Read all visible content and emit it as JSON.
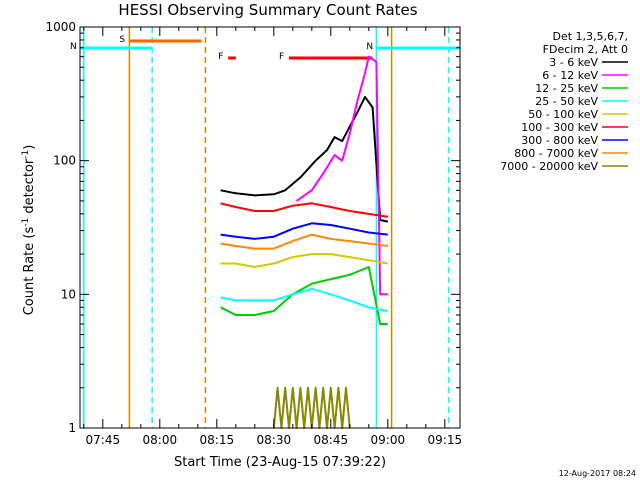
{
  "chart_data": {
    "type": "line",
    "title": "HESSI Observing Summary Count Rates",
    "xlabel": "Start Time (23-Aug-15 07:39:22)",
    "ylabel_main": "Count Rate (s",
    "ylabel_sup1": "-1",
    "ylabel_mid": " detector",
    "ylabel_sup2": "-1",
    "ylabel_end": ")",
    "yscale": "log",
    "xlim": [
      "07:39",
      "09:19"
    ],
    "ylim": [
      1,
      1000
    ],
    "x_ticks": [
      "07:45",
      "08:00",
      "08:15",
      "08:30",
      "08:45",
      "09:00",
      "09:15"
    ],
    "y_ticks": [
      "1",
      "10",
      "100",
      "1000"
    ],
    "legend_position": "right",
    "legend_header": [
      "Det 1,3,5,6,7,",
      "FDecim 2, Att 0"
    ],
    "footer_date": "12-Aug-2017 08:24",
    "series": [
      {
        "name": "3 - 6 keV",
        "color": "#000000",
        "points": [
          [
            "08:16",
            60
          ],
          [
            "08:20",
            57
          ],
          [
            "08:25",
            55
          ],
          [
            "08:30",
            56
          ],
          [
            "08:33",
            60
          ],
          [
            "08:37",
            75
          ],
          [
            "08:41",
            100
          ],
          [
            "08:44",
            120
          ],
          [
            "08:46",
            150
          ],
          [
            "08:48",
            140
          ],
          [
            "08:50",
            180
          ],
          [
            "08:52",
            230
          ],
          [
            "08:54",
            300
          ],
          [
            "08:56",
            250
          ],
          [
            "08:58",
            36
          ],
          [
            "09:00",
            35
          ]
        ]
      },
      {
        "name": "6 - 12 keV",
        "color": "#ff00ff",
        "points": [
          [
            "08:36",
            50
          ],
          [
            "08:40",
            60
          ],
          [
            "08:43",
            80
          ],
          [
            "08:46",
            110
          ],
          [
            "08:48",
            100
          ],
          [
            "08:50",
            160
          ],
          [
            "08:52",
            280
          ],
          [
            "08:54",
            450
          ],
          [
            "08:55",
            600
          ],
          [
            "08:57",
            550
          ],
          [
            "08:58",
            10
          ],
          [
            "09:00",
            10
          ]
        ]
      },
      {
        "name": "12 - 25 keV",
        "color": "#00cc00",
        "points": [
          [
            "08:16",
            8
          ],
          [
            "08:20",
            7
          ],
          [
            "08:25",
            7
          ],
          [
            "08:30",
            7.5
          ],
          [
            "08:35",
            10
          ],
          [
            "08:40",
            12
          ],
          [
            "08:45",
            13
          ],
          [
            "08:50",
            14
          ],
          [
            "08:55",
            16
          ],
          [
            "08:58",
            6
          ],
          [
            "09:00",
            6
          ]
        ]
      },
      {
        "name": "25 - 50 keV",
        "color": "#00ffff",
        "points": [
          [
            "08:16",
            9.5
          ],
          [
            "08:20",
            9
          ],
          [
            "08:25",
            9
          ],
          [
            "08:30",
            9
          ],
          [
            "08:35",
            10
          ],
          [
            "08:40",
            11
          ],
          [
            "08:45",
            10
          ],
          [
            "08:50",
            9
          ],
          [
            "08:55",
            8
          ],
          [
            "09:00",
            7.5
          ]
        ]
      },
      {
        "name": "50 - 100 keV",
        "color": "#cccc00",
        "points": [
          [
            "08:16",
            17
          ],
          [
            "08:20",
            17
          ],
          [
            "08:25",
            16
          ],
          [
            "08:30",
            17
          ],
          [
            "08:35",
            19
          ],
          [
            "08:40",
            20
          ],
          [
            "08:45",
            20
          ],
          [
            "08:50",
            19
          ],
          [
            "08:55",
            18
          ],
          [
            "09:00",
            17
          ]
        ]
      },
      {
        "name": "100 - 300 keV",
        "color": "#ff0000",
        "points": [
          [
            "08:16",
            48
          ],
          [
            "08:20",
            45
          ],
          [
            "08:25",
            42
          ],
          [
            "08:30",
            42
          ],
          [
            "08:35",
            46
          ],
          [
            "08:40",
            48
          ],
          [
            "08:45",
            45
          ],
          [
            "08:50",
            42
          ],
          [
            "08:55",
            40
          ],
          [
            "09:00",
            38
          ]
        ]
      },
      {
        "name": "300 - 800 keV",
        "color": "#0000ff",
        "points": [
          [
            "08:16",
            28
          ],
          [
            "08:20",
            27
          ],
          [
            "08:25",
            26
          ],
          [
            "08:30",
            27
          ],
          [
            "08:35",
            31
          ],
          [
            "08:40",
            34
          ],
          [
            "08:45",
            33
          ],
          [
            "08:50",
            31
          ],
          [
            "08:55",
            29
          ],
          [
            "09:00",
            28
          ]
        ]
      },
      {
        "name": "800 - 7000 keV",
        "color": "#ff8800",
        "points": [
          [
            "08:16",
            24
          ],
          [
            "08:20",
            23
          ],
          [
            "08:25",
            22
          ],
          [
            "08:30",
            22
          ],
          [
            "08:35",
            25
          ],
          [
            "08:40",
            28
          ],
          [
            "08:45",
            26
          ],
          [
            "08:50",
            25
          ],
          [
            "08:55",
            24
          ],
          [
            "09:00",
            23
          ]
        ]
      },
      {
        "name": "7000 - 20000 keV",
        "color": "#888800",
        "points": [
          [
            "08:30",
            1
          ],
          [
            "08:31",
            2
          ],
          [
            "08:32",
            1
          ],
          [
            "08:33",
            2
          ],
          [
            "08:34",
            1
          ],
          [
            "08:35",
            2
          ],
          [
            "08:36",
            1
          ],
          [
            "08:37",
            2
          ],
          [
            "08:38",
            1
          ],
          [
            "08:39",
            2
          ],
          [
            "08:40",
            1
          ],
          [
            "08:41",
            2
          ],
          [
            "08:42",
            1
          ],
          [
            "08:43",
            2
          ],
          [
            "08:44",
            1
          ],
          [
            "08:45",
            2
          ],
          [
            "08:46",
            1
          ],
          [
            "08:47",
            2
          ],
          [
            "08:48",
            1
          ],
          [
            "08:49",
            2
          ],
          [
            "08:50",
            1
          ]
        ]
      }
    ],
    "flags": [
      {
        "label": "S",
        "color": "#ff6600",
        "start": "07:52",
        "end": "08:11"
      },
      {
        "label": "N",
        "color": "#00ffff",
        "start": "07:39",
        "end": "07:58"
      },
      {
        "label": "N",
        "color": "#00ffff",
        "start": "08:57",
        "end": "09:19"
      },
      {
        "label": "F",
        "color": "#ff0000",
        "start": "08:18",
        "end": "08:20"
      },
      {
        "label": "F",
        "color": "#ff0000",
        "start": "08:34",
        "end": "08:56"
      }
    ],
    "vertical_lines": [
      {
        "time": "07:40",
        "color": "#00ffff",
        "style": "solid"
      },
      {
        "time": "07:52",
        "color": "#cc8800",
        "style": "solid"
      },
      {
        "time": "07:58",
        "color": "#00ffff",
        "style": "dashed"
      },
      {
        "time": "08:12",
        "color": "#cc8800",
        "style": "dashed"
      },
      {
        "time": "08:57",
        "color": "#00ffff",
        "style": "solid"
      },
      {
        "time": "09:01",
        "color": "#cc8800",
        "style": "solid"
      },
      {
        "time": "09:16",
        "color": "#00ffff",
        "style": "dashed"
      }
    ]
  }
}
